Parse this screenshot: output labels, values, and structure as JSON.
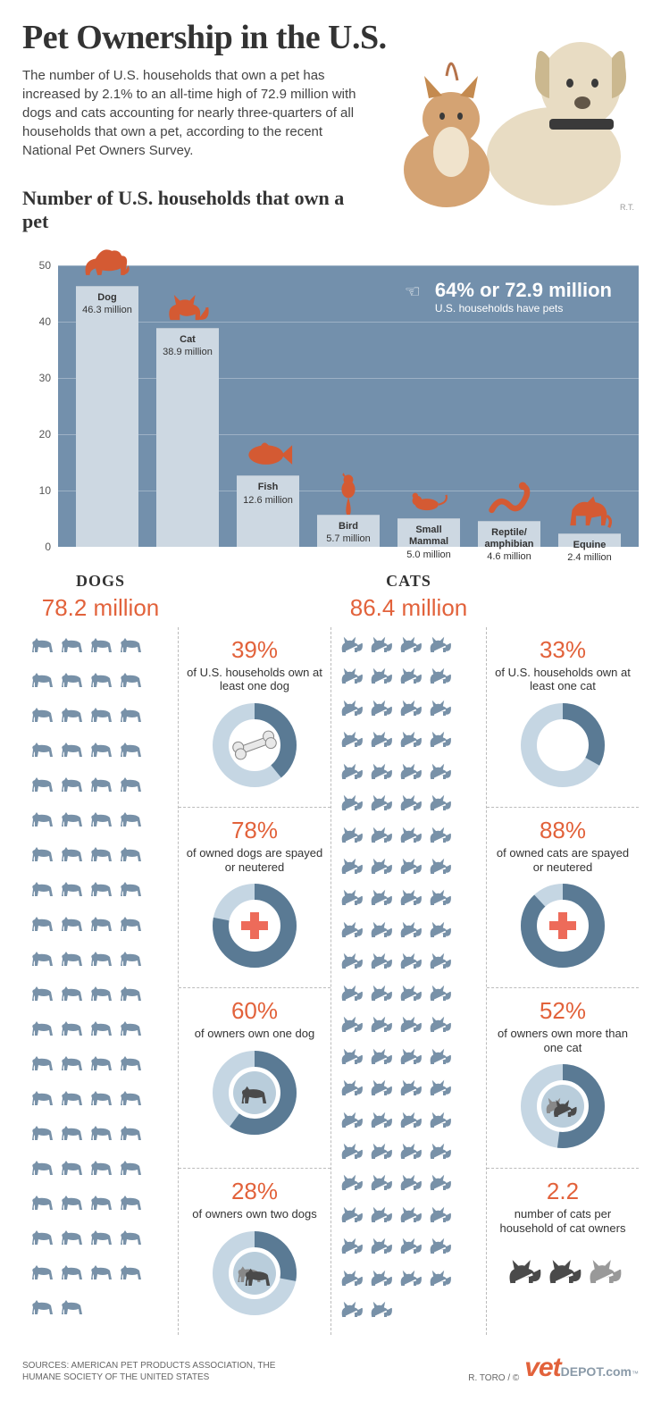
{
  "title": "Pet Ownership in the U.S.",
  "intro": "The number of U.S. households that own a pet has increased by 2.1% to an all-time high of 72.9 million with dogs and cats accounting for nearly three-quarters of all households that own a pet, according to the recent National Pet Owners Survey.",
  "chart": {
    "title": "Number of U.S. households that own a pet",
    "ylim": [
      0,
      50
    ],
    "ytick_step": 10,
    "background_color": "#6b8aa8",
    "bar_color": "#cdd8e2",
    "bars": [
      {
        "name": "Dog",
        "value": 46.3,
        "label": "46.3 million",
        "icon": "dog"
      },
      {
        "name": "Cat",
        "value": 38.9,
        "label": "38.9 million",
        "icon": "cat"
      },
      {
        "name": "Fish",
        "value": 12.6,
        "label": "12.6 million",
        "icon": "fish"
      },
      {
        "name": "Bird",
        "value": 5.7,
        "label": "5.7 million",
        "icon": "bird"
      },
      {
        "name": "Small Mammal",
        "value": 5.0,
        "label": "5.0 million",
        "icon": "mouse"
      },
      {
        "name": "Reptile/ amphibian",
        "value": 4.6,
        "label": "4.6 million",
        "icon": "snake"
      },
      {
        "name": "Equine",
        "value": 2.4,
        "label": "2.4 million",
        "icon": "horse"
      }
    ],
    "callout": {
      "big": "64% or 72.9 million",
      "sub": "U.S. households have pets"
    },
    "icon_color": "#d45a33"
  },
  "dogs": {
    "heading": "DOGS",
    "total": "78.2 million",
    "icon_count": 78,
    "silhouette_color": "#7891a8",
    "stats": [
      {
        "pct": "39%",
        "desc": "of U.S. households own at least one dog",
        "donut_value": 39,
        "icon": "bone"
      },
      {
        "pct": "78%",
        "desc": "of owned dogs are spayed or neutered",
        "donut_value": 78,
        "icon": "cross"
      },
      {
        "pct": "60%",
        "desc": "of owners own one dog",
        "donut_value": 60,
        "icon": "dog-sil"
      },
      {
        "pct": "28%",
        "desc": "of owners own two dogs",
        "donut_value": 28,
        "icon": "two-dogs"
      }
    ]
  },
  "cats": {
    "heading": "CATS",
    "total": "86.4 million",
    "icon_count": 86,
    "silhouette_color": "#7891a8",
    "stats": [
      {
        "pct": "33%",
        "desc": "of U.S. households own at least one cat",
        "donut_value": 33,
        "icon": "none"
      },
      {
        "pct": "88%",
        "desc": "of owned cats are spayed or neutered",
        "donut_value": 88,
        "icon": "cross"
      },
      {
        "pct": "52%",
        "desc": "of owners own more than one cat",
        "donut_value": 52,
        "icon": "two-cats"
      },
      {
        "pct": "2.2",
        "desc": "number of cats per household of cat owners",
        "donut_value": 0,
        "icon": "walking-cats"
      }
    ]
  },
  "donut_colors": {
    "fg": "#5a7a94",
    "bg": "#c5d6e3"
  },
  "accent": "#e2623b",
  "footer": {
    "sources": "SOURCES: AMERICAN PET PRODUCTS ASSOCIATION, THE HUMANE SOCIETY OF THE UNITED STATES",
    "credit": "R. TORO / ©",
    "logo_main": "vet",
    "logo_sub": "DEPOT.com"
  },
  "artist_sig": "R.T."
}
